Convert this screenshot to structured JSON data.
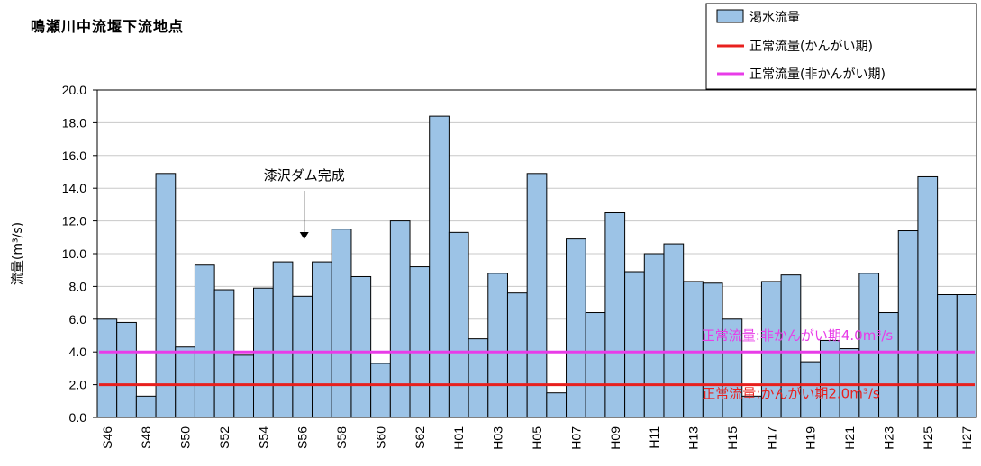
{
  "title": "鳴瀬川中流堰下流地点",
  "chart_data": {
    "type": "bar",
    "ylabel": "流量(m³/s)",
    "ylim": [
      0,
      20
    ],
    "yticks": [
      "0.0",
      "2.0",
      "4.0",
      "6.0",
      "8.0",
      "10.0",
      "12.0",
      "14.0",
      "16.0",
      "18.0",
      "20.0"
    ],
    "categories": [
      "S46",
      "S47",
      "S48",
      "S49",
      "S50",
      "S51",
      "S52",
      "S53",
      "S54",
      "S55",
      "S56",
      "S57",
      "S58",
      "S59",
      "S60",
      "S61",
      "S62",
      "S63",
      "H01",
      "H02",
      "H03",
      "H04",
      "H05",
      "H06",
      "H07",
      "H08",
      "H09",
      "H10",
      "H11",
      "H12",
      "H13",
      "H14",
      "H15",
      "H16",
      "H17",
      "H18",
      "H19",
      "H20",
      "H21",
      "H22",
      "H23",
      "H24",
      "H25",
      "H26",
      "H27"
    ],
    "xtick_labels": [
      "S46",
      "S48",
      "S50",
      "S52",
      "S54",
      "S56",
      "S58",
      "S60",
      "S62",
      "H01",
      "H03",
      "H05",
      "H07",
      "H09",
      "H11",
      "H13",
      "H15",
      "H17",
      "H19",
      "H21",
      "H23",
      "H25",
      "H27"
    ],
    "series": [
      {
        "name": "渇水流量",
        "color": "#9cc3e6",
        "values": [
          6.0,
          5.8,
          1.3,
          14.9,
          4.3,
          9.3,
          7.8,
          3.8,
          7.9,
          9.5,
          7.4,
          9.5,
          11.5,
          8.6,
          3.3,
          12.0,
          9.2,
          18.4,
          11.3,
          4.8,
          8.8,
          7.6,
          14.9,
          1.5,
          10.9,
          6.4,
          12.5,
          8.9,
          10.0,
          10.6,
          8.3,
          8.2,
          6.0,
          1.3,
          8.3,
          8.7,
          3.4,
          4.7,
          4.2,
          8.8,
          6.4,
          11.4,
          14.7,
          7.5,
          7.5
        ]
      }
    ],
    "reference_lines": [
      {
        "name": "正常流量(かんがい期)",
        "value": 2.0,
        "color": "#e8201e",
        "label": "正常流量:かんがい期2.0m³/s"
      },
      {
        "name": "正常流量(非かんがい期)",
        "value": 4.0,
        "color": "#e83ce8",
        "label": "正常流量:非かんがい期4.0m³/s"
      }
    ],
    "annotation": {
      "text": "漆沢ダム完成",
      "category": "S56"
    },
    "legend_position": "top-right"
  }
}
